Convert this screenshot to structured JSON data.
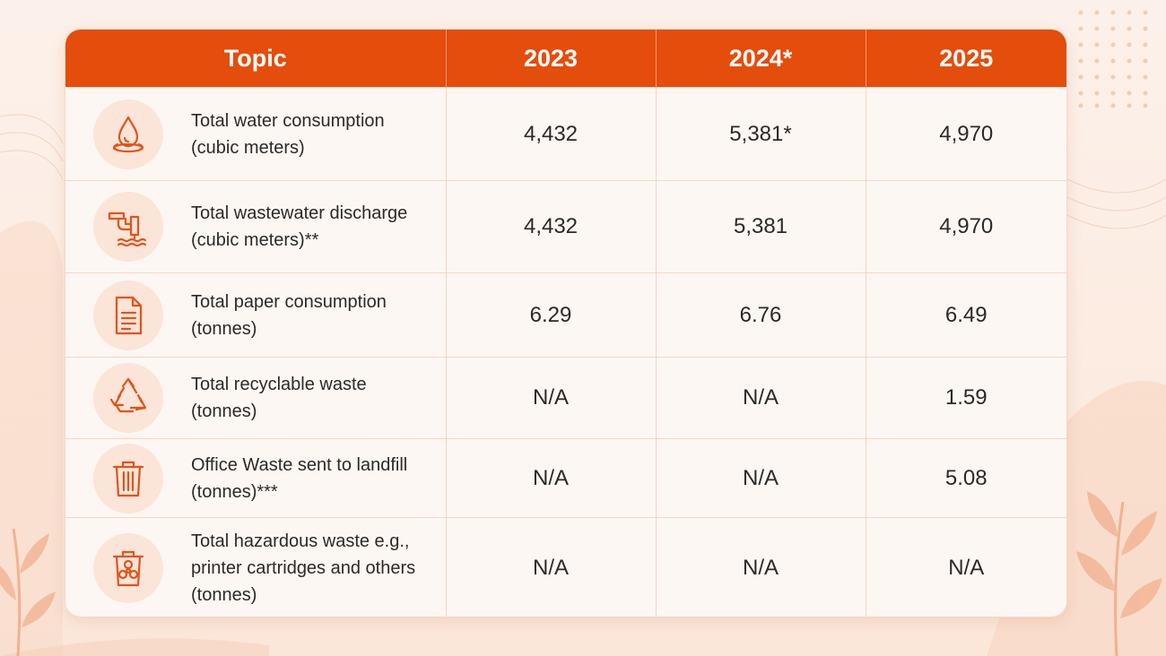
{
  "header": {
    "topic": "Topic",
    "year_2023": "2023",
    "year_2024": "2024*",
    "year_2025": "2025"
  },
  "rows": [
    {
      "icon": "water-drop-icon",
      "line1": "Total water consumption",
      "line2": "(cubic meters)",
      "line3": "",
      "v2023": "4,432",
      "v2024": "5,381*",
      "v2025": "4,970"
    },
    {
      "icon": "pipe-discharge-icon",
      "line1": "Total wastewater discharge",
      "line2": "(cubic meters)**",
      "line3": "",
      "v2023": "4,432",
      "v2024": "5,381",
      "v2025": "4,970"
    },
    {
      "icon": "document-icon",
      "line1": "Total paper consumption",
      "line2": "(tonnes)",
      "line3": "",
      "v2023": "6.29",
      "v2024": "6.76",
      "v2025": "6.49"
    },
    {
      "icon": "recycle-icon",
      "line1": "Total recyclable waste",
      "line2": "(tonnes)",
      "line3": "",
      "v2023": "N/A",
      "v2024": "N/A",
      "v2025": "1.59"
    },
    {
      "icon": "trash-bin-icon",
      "line1": "Office Waste sent to landfill",
      "line2": "(tonnes)***",
      "line3": "",
      "v2023": "N/A",
      "v2024": "N/A",
      "v2025": "5.08"
    },
    {
      "icon": "hazardous-bin-icon",
      "line1": "Total hazardous waste e.g.,",
      "line2": "printer cartridges and others",
      "line3": "(tonnes)",
      "v2023": "N/A",
      "v2024": "N/A",
      "v2025": "N/A"
    }
  ],
  "colors": {
    "accent": "#e44d0b",
    "icon": "#e2531a",
    "background": "#fcf1ea"
  }
}
